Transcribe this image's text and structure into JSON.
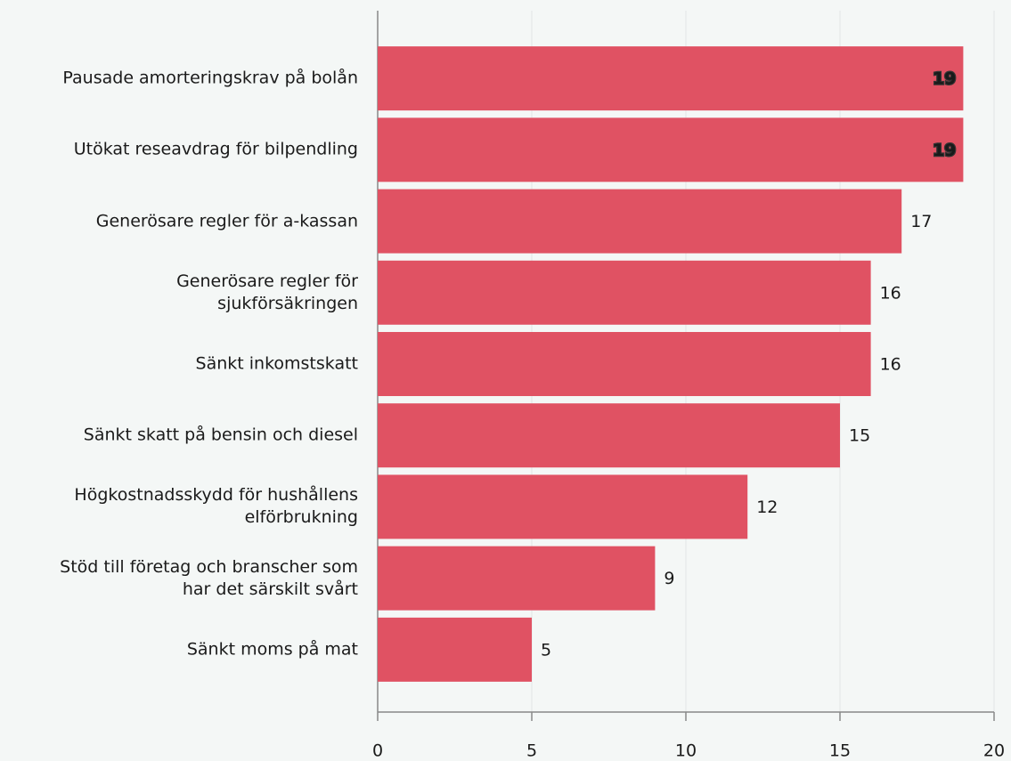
{
  "chart_data": {
    "type": "bar",
    "orientation": "horizontal",
    "categories": [
      "Pausade amorteringskrav på bolån",
      "Utökat reseavdrag för bilpendling",
      "Generösare regler för a-kassan",
      "Generösare regler för\nsjukförsäkringen",
      "Sänkt inkomstskatt",
      "Sänkt skatt på bensin och diesel",
      "Högkostnadsskydd för hushållens\nelförbrukning",
      "Stöd till företag och branscher som\nhar det särskilt svårt",
      "Sänkt moms på mat"
    ],
    "values": [
      19,
      19,
      17,
      16,
      16,
      15,
      12,
      9,
      5
    ],
    "color": "#e05263",
    "xlim": [
      0,
      20
    ],
    "xticks": [
      0,
      5,
      10,
      15,
      20
    ],
    "grid": true
  }
}
